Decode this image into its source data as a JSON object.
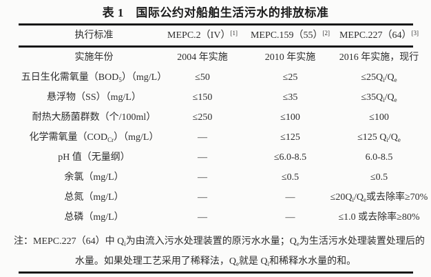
{
  "title": "表 1　国际公约对船舶生活污水的排放标准",
  "table": {
    "header": [
      "执行标准",
      "MEPC.2（IV）^[1]^",
      "MEPC.159（55）^[2]^",
      "MEPC.227（64）^[3]^"
    ],
    "rows": [
      [
        "实施年份",
        "2004 年实施",
        "2010 年实施",
        "2016 年实施，现行"
      ],
      [
        "五日生化需氧量（BOD~5~）（mg/L）",
        "≤50",
        "≤25",
        "≤25Q~i~/Q~e~"
      ],
      [
        "悬浮物（SS）（mg/L）",
        "≤150",
        "≤35",
        "≤35Q~i~/Q~e~"
      ],
      [
        "耐热大肠菌群数（个/100ml）",
        "≤250",
        "≤100",
        "≤100"
      ],
      [
        "化学需氧量（COD~Cr~）（mg/L）",
        "—",
        "≤125",
        "≤125 Q~i~/Q~e~"
      ],
      [
        "pH 值（无量纲）",
        "—",
        "≤6.0-8.5",
        "6.0-8.5"
      ],
      [
        "余氯（mg/L）",
        "—",
        "≤0.5",
        "≤0.5"
      ],
      [
        "总氮（mg/L）",
        "—",
        "—",
        "≤20Q~i~/Q~e~或去除率≥70%"
      ],
      [
        "总磷（mg/L）",
        "—",
        "—",
        "≤1.0 或去除率≥80%"
      ]
    ]
  },
  "note": {
    "line1": "注：MEPC.227（64）中 Q~i~为由流入污水处理装置的原污水水量；Q~e~为生活污水处理装置处理后的",
    "line2": "水量。如果处理工艺采用了稀释法，Q~e~就是 Q~i~和稀释水水量的和。"
  },
  "colors": {
    "background": "#fbfbfa",
    "text": "#2d2d2d",
    "rule": "#161616"
  }
}
